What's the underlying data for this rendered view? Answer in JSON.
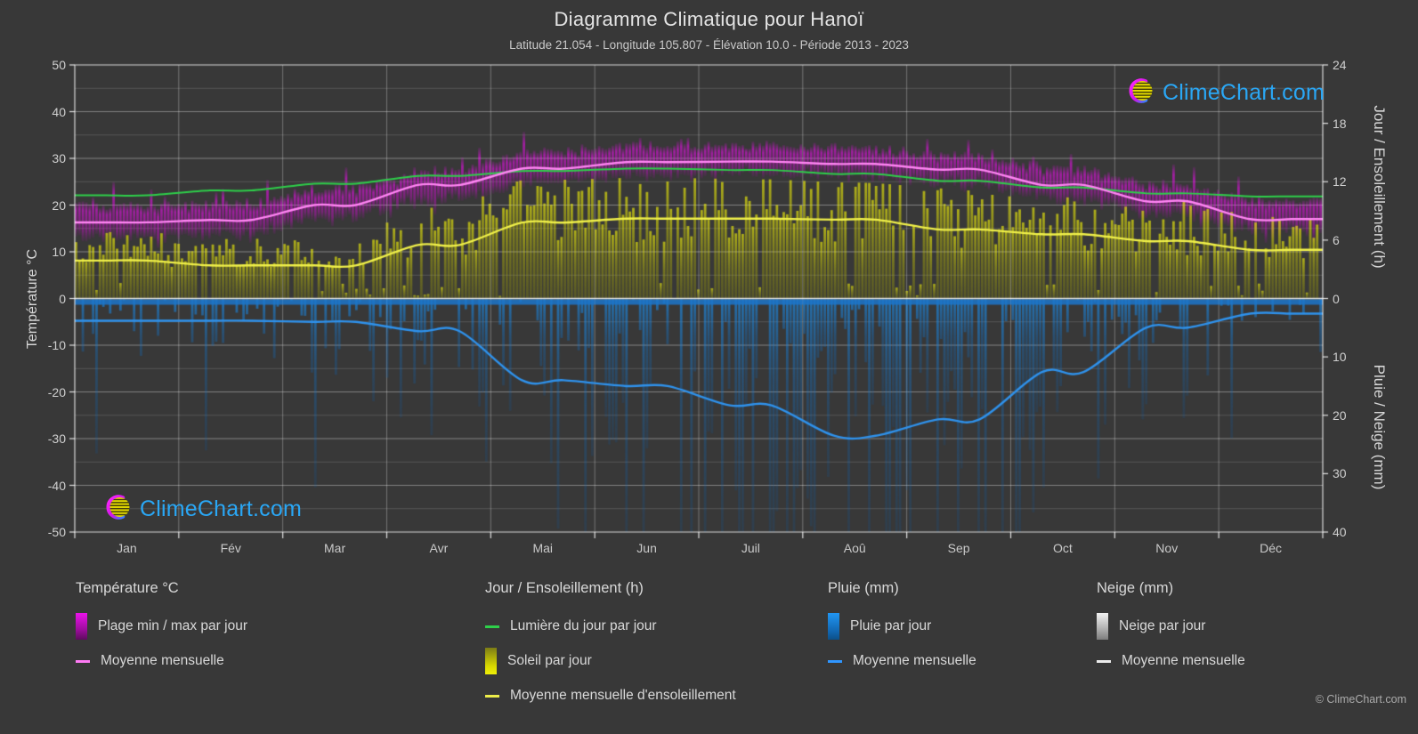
{
  "title": "Diagramme Climatique pour Hanoï",
  "subtitle": "Latitude 21.054 - Longitude 105.807 - Élévation 10.0 - Période 2013 - 2023",
  "watermark": {
    "text": "ClimeChart.com"
  },
  "footer": {
    "copyright": "© ClimeChart.com"
  },
  "axes": {
    "temp": {
      "title": "Température °C",
      "ticks": [
        50,
        40,
        30,
        20,
        10,
        0,
        -10,
        -20,
        -30,
        -40,
        -50
      ]
    },
    "sun": {
      "title": "Jour / Ensoleillement (h)",
      "ticks": [
        24,
        18,
        12,
        6,
        0
      ]
    },
    "precip": {
      "title": "Pluie / Neige (mm)",
      "ticks": [
        10,
        20,
        30,
        40
      ]
    }
  },
  "months": [
    "Jan",
    "Fév",
    "Mar",
    "Avr",
    "Mai",
    "Jun",
    "Juil",
    "Aoû",
    "Sep",
    "Oct",
    "Nov",
    "Déc"
  ],
  "legend": {
    "temperature": {
      "title": "Température °C",
      "items": [
        {
          "label": "Plage min / max par jour"
        },
        {
          "label": "Moyenne mensuelle"
        }
      ]
    },
    "sun": {
      "title": "Jour / Ensoleillement (h)",
      "items": [
        {
          "label": "Lumière du jour par jour"
        },
        {
          "label": "Soleil par jour"
        },
        {
          "label": "Moyenne mensuelle d'ensoleillement"
        }
      ]
    },
    "rain": {
      "title": "Pluie (mm)",
      "items": [
        {
          "label": "Pluie par jour"
        },
        {
          "label": "Moyenne mensuelle"
        }
      ]
    },
    "snow": {
      "title": "Neige (mm)",
      "items": [
        {
          "label": "Neige par jour"
        },
        {
          "label": "Moyenne mensuelle"
        }
      ]
    }
  },
  "chart_data": {
    "type": "climate-composite",
    "title": "Diagramme Climatique pour Hanoï",
    "months": [
      "Jan",
      "Fév",
      "Mar",
      "Avr",
      "Mai",
      "Jun",
      "Juil",
      "Aoû",
      "Sep",
      "Oct",
      "Nov",
      "Déc"
    ],
    "axis_ranges": {
      "temp_c": [
        -50,
        50
      ],
      "sun_h": [
        0,
        24
      ],
      "precip_mm": [
        0,
        40
      ],
      "precip_direction": "down"
    },
    "grid": true,
    "series": [
      {
        "key": "daylight",
        "name": "Lumière du jour par jour",
        "type": "line",
        "axis": "sun_h",
        "color": "#2ed04a",
        "values": [
          10.6,
          11.1,
          11.8,
          12.6,
          13.1,
          13.35,
          13.2,
          12.8,
          12.1,
          11.4,
          10.8,
          10.5
        ]
      },
      {
        "key": "temp_mean",
        "name": "Température moyenne mensuelle",
        "type": "line",
        "axis": "temp_c",
        "color": "#ff85f3",
        "values": [
          16.3,
          16.8,
          20.0,
          24.3,
          27.8,
          29.2,
          29.3,
          28.8,
          27.6,
          24.3,
          20.8,
          17.0
        ]
      },
      {
        "key": "temp_min",
        "name": "Plage min par jour",
        "type": "band-low",
        "axis": "temp_c",
        "color": "#e020e0",
        "values": [
          13.0,
          13.5,
          17.0,
          21.0,
          24.5,
          26.0,
          26.5,
          26.0,
          24.5,
          21.0,
          17.5,
          14.0
        ]
      },
      {
        "key": "temp_max",
        "name": "Plage max par jour",
        "type": "band-high",
        "axis": "temp_c",
        "color": "#e020e0",
        "values": [
          20.0,
          20.5,
          23.5,
          27.5,
          31.5,
          33.0,
          33.0,
          32.5,
          31.0,
          28.0,
          24.5,
          21.0
        ]
      },
      {
        "key": "sun_mean",
        "name": "Moyenne mensuelle d'ensoleillement",
        "type": "line",
        "axis": "sun_h",
        "color": "#f0f04a",
        "values": [
          3.9,
          3.4,
          3.4,
          5.5,
          7.8,
          8.2,
          8.2,
          8.1,
          7.1,
          6.6,
          5.9,
          5.0
        ]
      },
      {
        "key": "rain_mean",
        "name": "Pluie moyenne mensuelle",
        "type": "line",
        "axis": "precip_mm",
        "color": "#2f92ec",
        "values": [
          3.8,
          3.8,
          4.0,
          5.6,
          14.0,
          15.0,
          18.3,
          23.5,
          20.7,
          12.6,
          5.0,
          2.6
        ]
      },
      {
        "key": "snow_mean",
        "name": "Neige moyenne mensuelle",
        "type": "line",
        "axis": "precip_mm",
        "color": "#ececec",
        "values": [
          0,
          0,
          0,
          0,
          0,
          0,
          0,
          0,
          0,
          0,
          0,
          0
        ]
      }
    ]
  }
}
